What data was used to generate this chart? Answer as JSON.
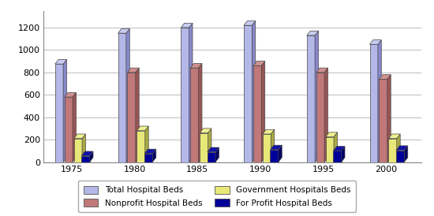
{
  "years": [
    1975,
    1980,
    1985,
    1990,
    1995,
    2000
  ],
  "series": {
    "Total Hospital Beds": [
      875,
      1150,
      1200,
      1220,
      1130,
      1050
    ],
    "Nonprofit Hospital Beds": [
      580,
      800,
      840,
      860,
      800,
      740
    ],
    "Government Hospitals Beds": [
      210,
      280,
      260,
      250,
      225,
      210
    ],
    "For Profit Hospital Beds": [
      55,
      75,
      90,
      110,
      100,
      105
    ]
  },
  "colors_face": {
    "Total Hospital Beds": "#b3b8e8",
    "Nonprofit Hospital Beds": "#c07878",
    "Government Hospitals Beds": "#e8e878",
    "For Profit Hospital Beds": "#000099"
  },
  "colors_side": {
    "Total Hospital Beds": "#8888cc",
    "Nonprofit Hospital Beds": "#995555",
    "Government Hospitals Beds": "#aaaa44",
    "For Profit Hospital Beds": "#000066"
  },
  "colors_top": {
    "Total Hospital Beds": "#c8ccf0",
    "Nonprofit Hospital Beds": "#d09090",
    "Government Hospitals Beds": "#f0f090",
    "For Profit Hospital Beds": "#1111aa"
  },
  "ylim": [
    0,
    1350
  ],
  "yticks": [
    0,
    200,
    400,
    600,
    800,
    1000,
    1200
  ],
  "background_color": "#ffffff",
  "grid_color": "#bbbbbb",
  "legend_order": [
    "Total Hospital Beds",
    "Nonprofit Hospital Beds",
    "Government Hospitals Beds",
    "For Profit Hospital Beds"
  ]
}
